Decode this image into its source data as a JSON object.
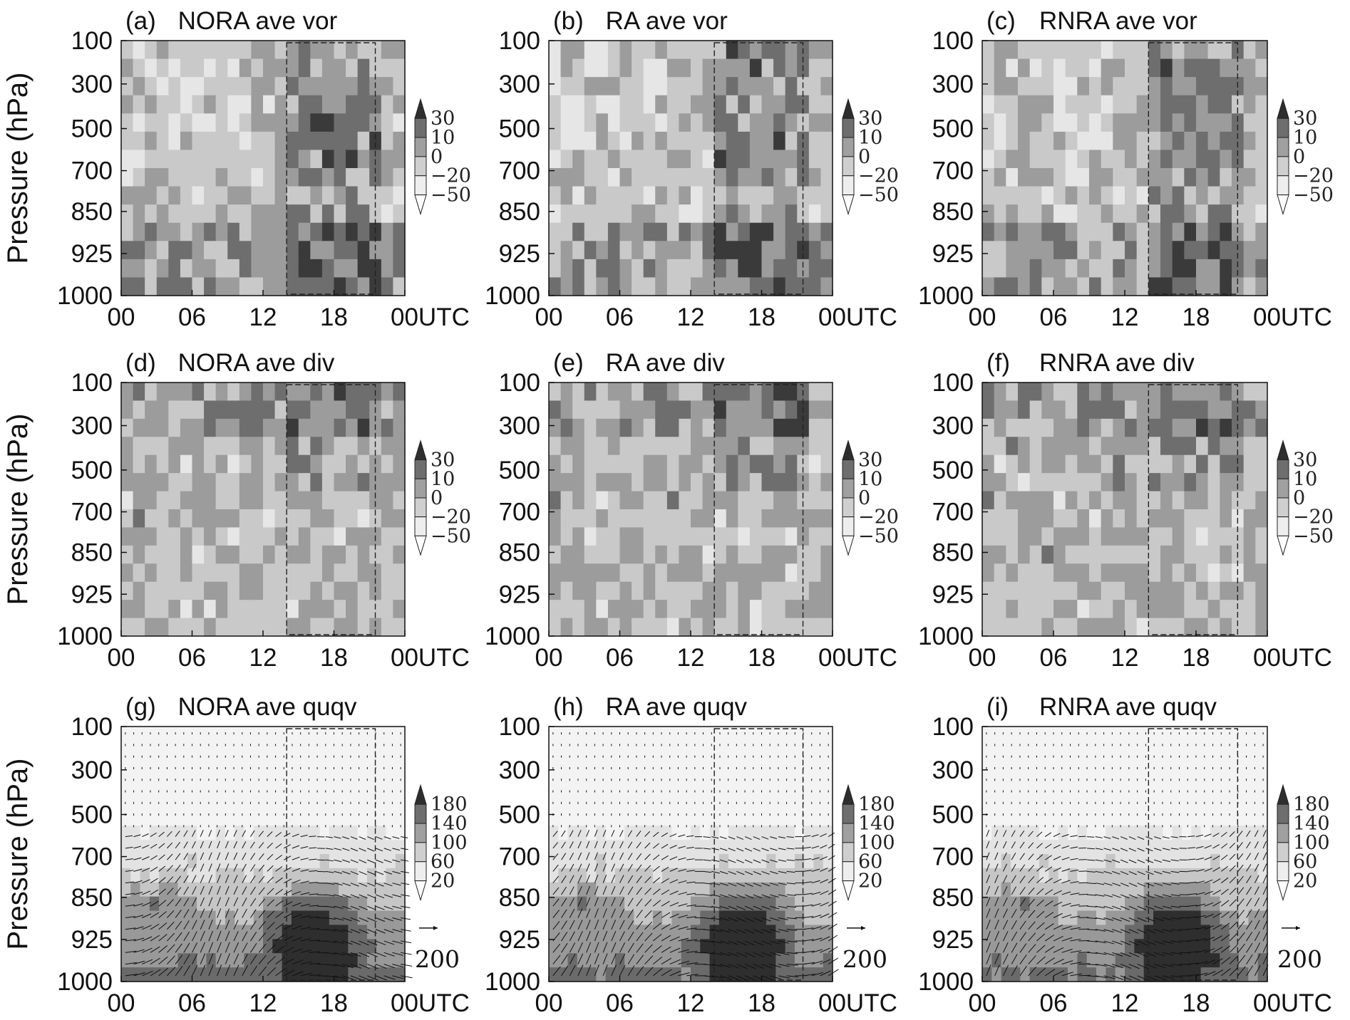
{
  "figure": {
    "ylabel": "Pressure (hPa)",
    "xticks": [
      "00",
      "06",
      "12",
      "18",
      "00UTC"
    ],
    "yticks": [
      "100",
      "300",
      "500",
      "700",
      "850",
      "925",
      "1000"
    ]
  },
  "chart_data": [
    {
      "type": "heatmap",
      "id": "a",
      "label": "(a)",
      "title": "NORA ave vor",
      "variable": "vor",
      "x": [
        "00",
        "06",
        "12",
        "18",
        "00UTC"
      ],
      "y": [
        "100",
        "300",
        "500",
        "700",
        "850",
        "925",
        "1000"
      ],
      "colorbar": [
        "30",
        "10",
        "0",
        "−20",
        "−50"
      ],
      "box_x_hours": [
        14,
        21.5
      ]
    },
    {
      "type": "heatmap",
      "id": "b",
      "label": "(b)",
      "title": "RA ave vor",
      "variable": "vor",
      "x": [
        "00",
        "06",
        "12",
        "18",
        "00UTC"
      ],
      "y": [
        "100",
        "300",
        "500",
        "700",
        "850",
        "925",
        "1000"
      ],
      "colorbar": [
        "30",
        "10",
        "0",
        "−20",
        "−50"
      ],
      "box_x_hours": [
        14,
        21.5
      ]
    },
    {
      "type": "heatmap",
      "id": "c",
      "label": "(c)",
      "title": "RNRA ave vor",
      "variable": "vor",
      "x": [
        "00",
        "06",
        "12",
        "18",
        "00UTC"
      ],
      "y": [
        "100",
        "300",
        "500",
        "700",
        "850",
        "925",
        "1000"
      ],
      "colorbar": [
        "30",
        "10",
        "0",
        "−20",
        "−50"
      ],
      "box_x_hours": [
        14,
        21.5
      ]
    },
    {
      "type": "heatmap",
      "id": "d",
      "label": "(d)",
      "title": "NORA ave div",
      "variable": "div",
      "x": [
        "00",
        "06",
        "12",
        "18",
        "00UTC"
      ],
      "y": [
        "100",
        "300",
        "500",
        "700",
        "850",
        "925",
        "1000"
      ],
      "colorbar": [
        "30",
        "10",
        "0",
        "−20",
        "−50"
      ],
      "box_x_hours": [
        14,
        21.5
      ]
    },
    {
      "type": "heatmap",
      "id": "e",
      "label": "(e)",
      "title": "RA ave div",
      "variable": "div",
      "x": [
        "00",
        "06",
        "12",
        "18",
        "00UTC"
      ],
      "y": [
        "100",
        "300",
        "500",
        "700",
        "850",
        "925",
        "1000"
      ],
      "colorbar": [
        "30",
        "10",
        "0",
        "−20",
        "−50"
      ],
      "box_x_hours": [
        14,
        21.5
      ]
    },
    {
      "type": "heatmap",
      "id": "f",
      "label": "(f)",
      "title": "RNRA ave div",
      "variable": "div",
      "x": [
        "00",
        "06",
        "12",
        "18",
        "00UTC"
      ],
      "y": [
        "100",
        "300",
        "500",
        "700",
        "850",
        "925",
        "1000"
      ],
      "colorbar": [
        "30",
        "10",
        "0",
        "−20",
        "−50"
      ],
      "box_x_hours": [
        14,
        21.5
      ]
    },
    {
      "type": "heatmap",
      "id": "g",
      "label": "(g)",
      "title": "NORA ave quqv",
      "variable": "quqv",
      "x": [
        "00",
        "06",
        "12",
        "18",
        "00UTC"
      ],
      "y": [
        "100",
        "300",
        "500",
        "700",
        "850",
        "925",
        "1000"
      ],
      "colorbar": [
        "180",
        "140",
        "100",
        "60",
        "20"
      ],
      "reference_vector": "200",
      "box_x_hours": [
        14,
        21.5
      ]
    },
    {
      "type": "heatmap",
      "id": "h",
      "label": "(h)",
      "title": "RA ave quqv",
      "variable": "quqv",
      "x": [
        "00",
        "06",
        "12",
        "18",
        "00UTC"
      ],
      "y": [
        "100",
        "300",
        "500",
        "700",
        "850",
        "925",
        "1000"
      ],
      "colorbar": [
        "180",
        "140",
        "100",
        "60",
        "20"
      ],
      "reference_vector": "200",
      "box_x_hours": [
        14,
        21.5
      ]
    },
    {
      "type": "heatmap",
      "id": "i",
      "label": "(i)",
      "title": "RNRA ave quqv",
      "variable": "quqv",
      "x": [
        "00",
        "06",
        "12",
        "18",
        "00UTC"
      ],
      "y": [
        "100",
        "300",
        "500",
        "700",
        "850",
        "925",
        "1000"
      ],
      "colorbar": [
        "180",
        "140",
        "100",
        "60",
        "20"
      ],
      "reference_vector": "200",
      "box_x_hours": [
        14,
        21.5
      ]
    }
  ]
}
